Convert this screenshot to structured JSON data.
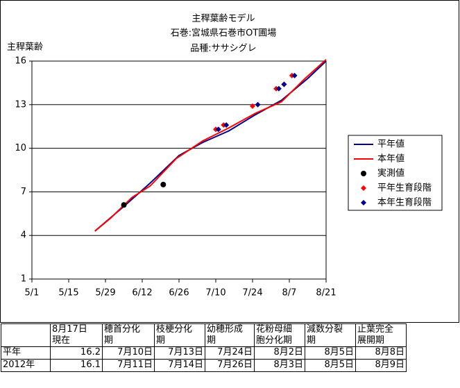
{
  "chart_data": {
    "type": "line",
    "title": "主稈葉齢モデル",
    "subtitle": [
      "石巻:宮城県石巻市OT圃場",
      "品種:ササシグレ"
    ],
    "ylabel": "主稈葉齢",
    "xlim": [
      121,
      233
    ],
    "xticks": [
      {
        "value": 121,
        "label": "5/1"
      },
      {
        "value": 135,
        "label": "5/15"
      },
      {
        "value": 149,
        "label": "5/29"
      },
      {
        "value": 163,
        "label": "6/12"
      },
      {
        "value": 177,
        "label": "6/26"
      },
      {
        "value": 191,
        "label": "7/10"
      },
      {
        "value": 205,
        "label": "7/24"
      },
      {
        "value": 219,
        "label": "8/7"
      },
      {
        "value": 233,
        "label": "8/21"
      }
    ],
    "ylim": [
      1,
      16
    ],
    "yticks": [
      1,
      4,
      7,
      10,
      13,
      16
    ],
    "grid": true,
    "legend": "right",
    "series": [
      {
        "name": "平年値",
        "type": "line",
        "color": "#00008b",
        "x": [
          145,
          156,
          166,
          177,
          186,
          196,
          206,
          216,
          226,
          233
        ],
        "values": [
          4.3,
          6.0,
          7.6,
          9.5,
          10.4,
          11.2,
          12.3,
          13.3,
          14.8,
          16.0
        ]
      },
      {
        "name": "本年値",
        "type": "line",
        "color": "#ff0000",
        "x": [
          145,
          151,
          159,
          166,
          176,
          186,
          196,
          206,
          216,
          225,
          233
        ],
        "values": [
          4.3,
          5.2,
          6.6,
          7.4,
          9.3,
          10.5,
          11.4,
          12.4,
          13.2,
          14.8,
          16.1
        ]
      },
      {
        "name": "実測値",
        "type": "scatter",
        "marker": "circle",
        "color": "#000000",
        "x": [
          156,
          171
        ],
        "values": [
          6.1,
          7.5
        ]
      },
      {
        "name": "平年生育段階",
        "type": "scatter",
        "marker": "diamond",
        "color": "#ff0000",
        "x": [
          191,
          194,
          205,
          214,
          217,
          220
        ],
        "values": [
          11.3,
          11.6,
          12.9,
          14.1,
          14.4,
          15.0
        ]
      },
      {
        "name": "本年生育段階",
        "type": "scatter",
        "marker": "diamond",
        "color": "#00008b",
        "x": [
          192,
          195,
          207,
          215,
          217,
          221
        ],
        "values": [
          11.3,
          11.6,
          13.0,
          14.1,
          14.4,
          15.0
        ]
      }
    ]
  },
  "table": {
    "header": [
      "8月17日\n現在",
      "穂首分化\n期",
      "枝梗分化\n期",
      "幼穂形成\n期",
      "花粉母細\n胞分化期",
      "減数分裂\n期",
      "止葉完全\n展開期"
    ],
    "rows": [
      {
        "label": "平年",
        "cells": [
          "16.2",
          "7月10日",
          "7月13日",
          "7月24日",
          "8月2日",
          "8月5日",
          "8月8日"
        ]
      },
      {
        "label": "2012年",
        "cells": [
          "16.1",
          "7月11日",
          "7月14日",
          "7月26日",
          "8月3日",
          "8月5日",
          "8月9日"
        ]
      }
    ]
  }
}
